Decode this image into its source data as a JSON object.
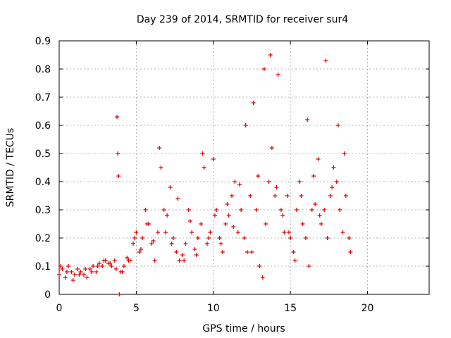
{
  "chart_data": {
    "type": "scatter",
    "title": "Day 239 of 2014, SRMTID for receiver sur4",
    "xlabel": "GPS time / hours",
    "ylabel": "SRMTID / TECUs",
    "xlim": [
      0,
      24
    ],
    "ylim": [
      0,
      0.9
    ],
    "xticks": [
      0,
      5,
      10,
      15,
      20
    ],
    "xtick_labels": [
      "0",
      "5",
      "10",
      "15",
      "20"
    ],
    "yticks": [
      0,
      0.1,
      0.2,
      0.3,
      0.4,
      0.5,
      0.6,
      0.7,
      0.8,
      0.9
    ],
    "ytick_labels": [
      "0",
      "0.1",
      "0.2",
      "0.3",
      "0.4",
      "0.5",
      "0.6",
      "0.7",
      "0.8",
      "0.9"
    ],
    "grid": true,
    "marker": "+",
    "color": "#e00000",
    "series": [
      {
        "name": "SRMTID",
        "x": [
          0.0,
          0.2,
          0.4,
          0.6,
          0.8,
          1.0,
          1.2,
          1.4,
          1.6,
          1.8,
          2.0,
          2.2,
          2.4,
          2.6,
          2.8,
          3.0,
          3.2,
          3.4,
          3.6,
          3.75,
          3.8,
          3.85,
          3.9,
          4.0,
          4.2,
          4.4,
          4.6,
          4.8,
          5.0,
          5.2,
          5.4,
          5.6,
          5.8,
          6.0,
          6.2,
          6.4,
          6.6,
          6.8,
          7.0,
          7.2,
          7.4,
          7.6,
          7.8,
          8.0,
          8.2,
          8.4,
          8.6,
          8.8,
          9.0,
          9.2,
          9.4,
          9.6,
          9.8,
          10.0,
          10.2,
          10.4,
          10.6,
          10.8,
          11.0,
          11.2,
          11.4,
          11.6,
          11.8,
          12.0,
          12.2,
          12.4,
          12.6,
          12.8,
          13.0,
          13.2,
          13.4,
          13.6,
          13.8,
          14.0,
          14.2,
          14.4,
          14.6,
          14.8,
          15.0,
          15.2,
          15.4,
          15.6,
          15.8,
          16.0,
          16.2,
          16.4,
          16.6,
          16.8,
          17.0,
          17.2,
          17.4,
          17.6,
          17.8,
          18.0,
          18.2,
          18.4,
          18.6,
          18.8,
          0.1,
          0.5,
          0.9,
          1.3,
          1.7,
          2.1,
          2.5,
          2.9,
          3.3,
          3.7,
          4.1,
          4.5,
          4.9,
          5.3,
          5.7,
          6.1,
          6.5,
          6.9,
          7.3,
          7.7,
          8.1,
          8.5,
          8.9,
          9.3,
          9.7,
          10.1,
          10.5,
          10.9,
          11.3,
          11.7,
          12.1,
          12.5,
          12.9,
          13.3,
          13.7,
          14.1,
          14.5,
          14.9,
          15.3,
          15.7,
          16.1,
          16.5,
          16.9,
          17.3,
          17.7,
          18.1,
          18.5,
          18.9
        ],
        "y": [
          0.07,
          0.09,
          0.06,
          0.1,
          0.08,
          0.07,
          0.09,
          0.08,
          0.07,
          0.06,
          0.09,
          0.1,
          0.08,
          0.11,
          0.1,
          0.12,
          0.11,
          0.1,
          0.12,
          0.63,
          0.5,
          0.42,
          0.0,
          0.08,
          0.1,
          0.13,
          0.12,
          0.18,
          0.22,
          0.15,
          0.2,
          0.3,
          0.25,
          0.18,
          0.12,
          0.22,
          0.45,
          0.3,
          0.28,
          0.38,
          0.2,
          0.15,
          0.12,
          0.14,
          0.18,
          0.3,
          0.22,
          0.16,
          0.2,
          0.25,
          0.45,
          0.18,
          0.22,
          0.48,
          0.3,
          0.2,
          0.15,
          0.25,
          0.28,
          0.35,
          0.4,
          0.22,
          0.3,
          0.2,
          0.15,
          0.35,
          0.68,
          0.3,
          0.1,
          0.06,
          0.25,
          0.4,
          0.52,
          0.35,
          0.78,
          0.3,
          0.22,
          0.35,
          0.2,
          0.15,
          0.3,
          0.4,
          0.25,
          0.2,
          0.1,
          0.3,
          0.32,
          0.48,
          0.25,
          0.3,
          0.2,
          0.35,
          0.45,
          0.4,
          0.3,
          0.22,
          0.35,
          0.2,
          0.1,
          0.08,
          0.05,
          0.07,
          0.09,
          0.08,
          0.1,
          0.12,
          0.11,
          0.09,
          0.08,
          0.12,
          0.2,
          0.16,
          0.25,
          0.19,
          0.52,
          0.22,
          0.18,
          0.34,
          0.12,
          0.26,
          0.14,
          0.5,
          0.2,
          0.28,
          0.18,
          0.32,
          0.24,
          0.39,
          0.6,
          0.15,
          0.42,
          0.8,
          0.85,
          0.38,
          0.28,
          0.22,
          0.12,
          0.35,
          0.62,
          0.42,
          0.28,
          0.83,
          0.38,
          0.6,
          0.5,
          0.15
        ]
      }
    ]
  }
}
